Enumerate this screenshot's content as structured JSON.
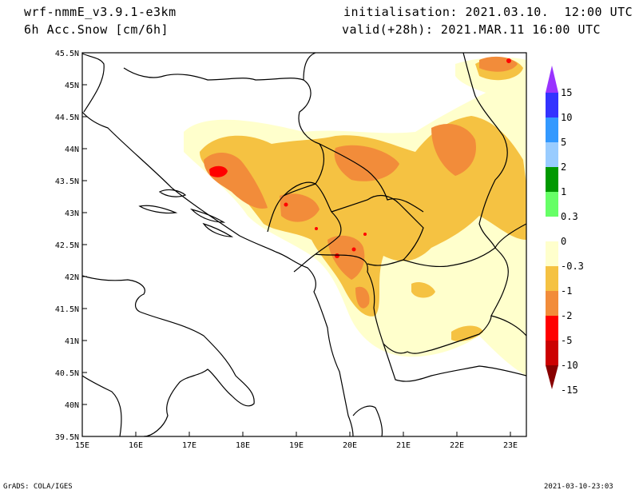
{
  "header": {
    "model": "wrf-nmmE_v3.9.1-e3km",
    "field": "6h Acc.Snow [cm/6h]",
    "init": "initialisation: 2021.03.10.  12:00 UTC",
    "valid": "valid(+28h): 2021.MAR.11 16:00 UTC"
  },
  "footer": {
    "credit": "GrADS: COLA/IGES",
    "timestamp": "2021-03-10-23:03"
  },
  "map": {
    "lat_labels": [
      "45.5N",
      "45N",
      "44.5N",
      "44N",
      "43.5N",
      "43N",
      "42.5N",
      "42N",
      "41.5N",
      "41N",
      "40.5N",
      "40N",
      "39.5N"
    ],
    "lon_labels": [
      "15E",
      "16E",
      "17E",
      "18E",
      "19E",
      "20E",
      "21E",
      "22E",
      "23E"
    ]
  },
  "colorbar": {
    "labels": [
      "15",
      "10",
      "5",
      "2",
      "1",
      "0.3",
      "0",
      "-0.3",
      "-1",
      "-2",
      "-5",
      "-10",
      "-15"
    ],
    "colors": [
      "#9933ff",
      "#3333ff",
      "#3399ff",
      "#99ccff",
      "#009900",
      "#66ff66",
      "#ffffff",
      "#ffffcc",
      "#f5c242",
      "#f28c3a",
      "#ff0000",
      "#cc0000",
      "#880000"
    ]
  },
  "colors": {
    "light": "#ffffcc",
    "medium": "#f5c242",
    "heavy": "#f28c3a",
    "extreme": "#ff0000"
  }
}
